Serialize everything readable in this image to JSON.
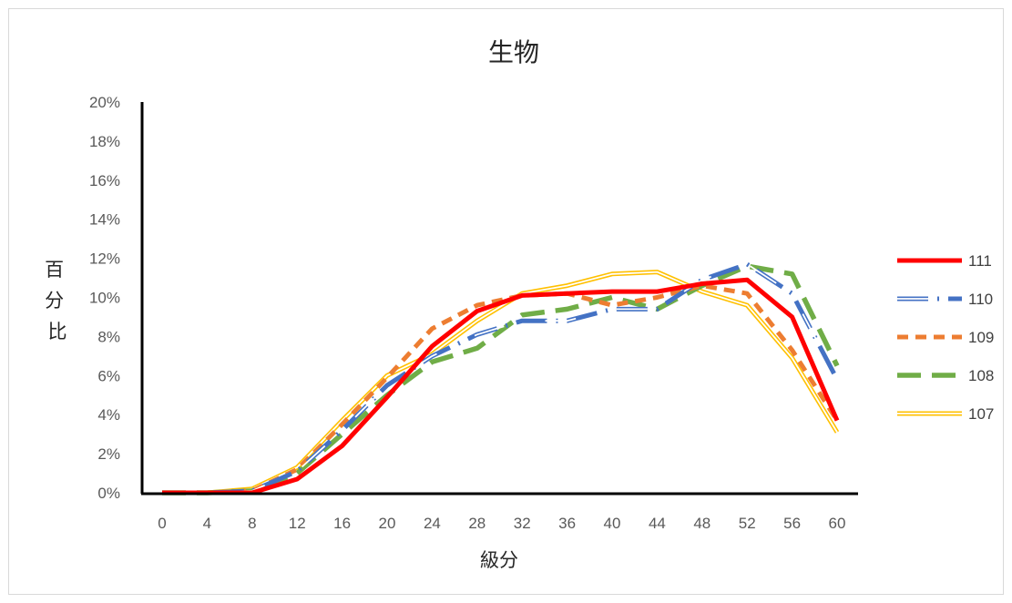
{
  "chart_data": {
    "type": "line",
    "title": "生物",
    "xlabel": "級分",
    "ylabel": "百分比",
    "categories": [
      "0",
      "4",
      "8",
      "12",
      "16",
      "20",
      "24",
      "28",
      "32",
      "36",
      "40",
      "44",
      "48",
      "52",
      "56",
      "60"
    ],
    "ylim": [
      0,
      20
    ],
    "ytick_labels": [
      "0%",
      "2%",
      "4%",
      "6%",
      "8%",
      "10%",
      "12%",
      "14%",
      "16%",
      "18%",
      "20%"
    ],
    "grid": false,
    "legend_position": "right",
    "series": [
      {
        "name": "111",
        "color": "#ff0000",
        "style": "solid-thick",
        "values": [
          0,
          0,
          0,
          0.7,
          2.4,
          4.9,
          7.5,
          9.3,
          10.1,
          10.2,
          10.3,
          10.3,
          10.7,
          10.9,
          9.0,
          3.7
        ]
      },
      {
        "name": "110",
        "color": "#4472c4",
        "style": "double-dashdot",
        "values": [
          0,
          0,
          0.1,
          1.1,
          3.2,
          5.5,
          7.0,
          8.1,
          8.8,
          8.8,
          9.4,
          9.4,
          10.9,
          11.7,
          10.2,
          5.8
        ]
      },
      {
        "name": "109",
        "color": "#ed7d31",
        "style": "dashed",
        "values": [
          0,
          0,
          0.1,
          1.2,
          3.5,
          5.9,
          8.4,
          9.6,
          10.1,
          10.2,
          9.6,
          10.0,
          10.6,
          10.2,
          7.3,
          3.7
        ]
      },
      {
        "name": "108",
        "color": "#70ad47",
        "style": "long-dashed",
        "values": [
          0,
          0,
          0.1,
          1.0,
          3.0,
          5.0,
          6.7,
          7.4,
          9.1,
          9.4,
          10.0,
          9.4,
          10.6,
          11.6,
          11.2,
          6.5
        ]
      },
      {
        "name": "107",
        "color": "#ffc000",
        "style": "double",
        "values": [
          0,
          0,
          0.2,
          1.3,
          3.7,
          6.0,
          7.1,
          8.8,
          10.2,
          10.6,
          11.2,
          11.3,
          10.3,
          9.6,
          6.9,
          3.1
        ]
      }
    ]
  }
}
